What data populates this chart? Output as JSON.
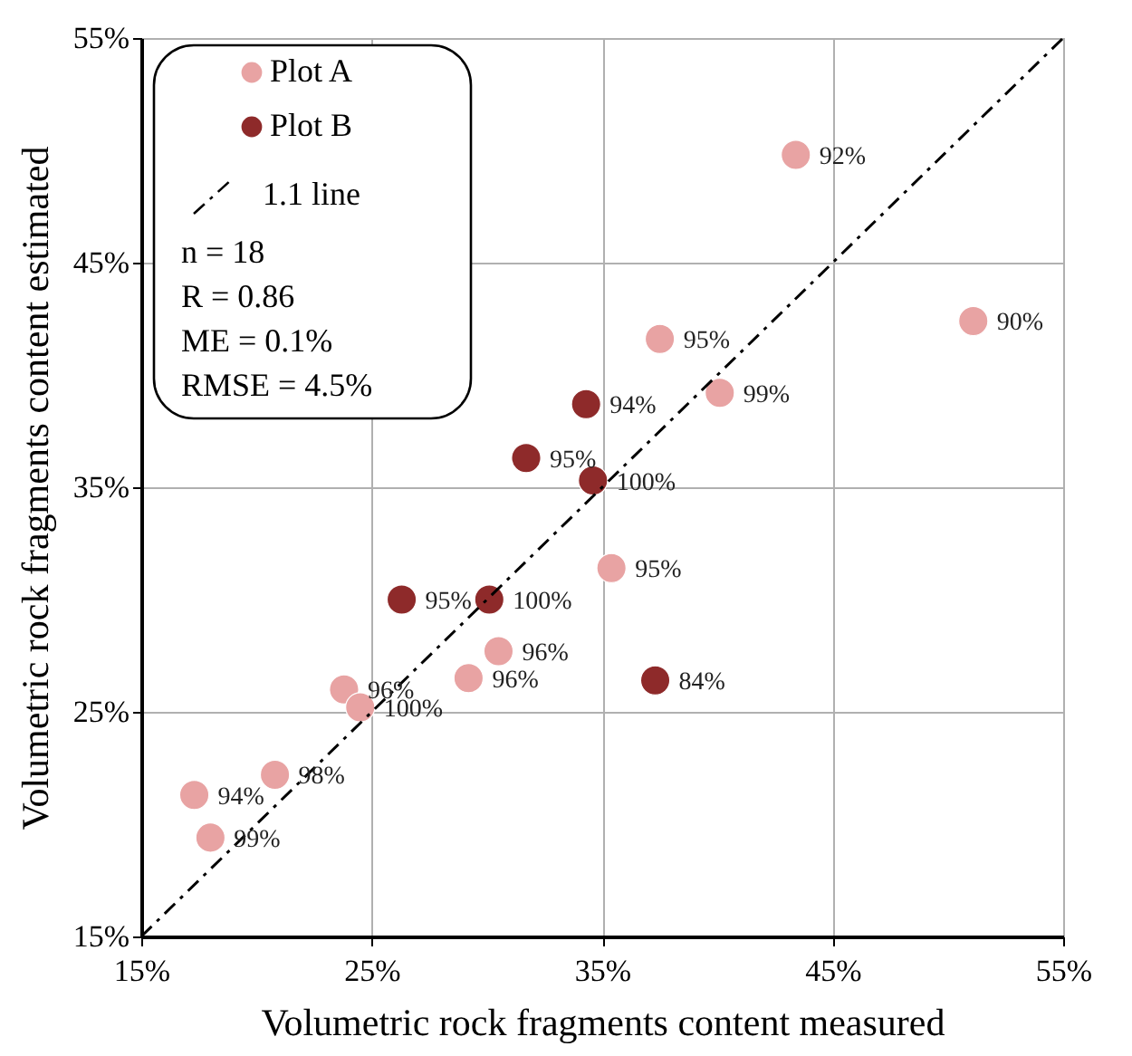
{
  "chart_data": {
    "type": "scatter",
    "xlabel": "Volumetric rock fragments content measured",
    "ylabel": "Volumetric rock  fragments content estimated",
    "xlim": [
      15,
      55
    ],
    "ylim": [
      15,
      55
    ],
    "xticks": [
      {
        "value": 15,
        "label": "15%"
      },
      {
        "value": 25,
        "label": "25%"
      },
      {
        "value": 35,
        "label": "35%"
      },
      {
        "value": 45,
        "label": "45%"
      },
      {
        "value": 55,
        "label": "55%"
      }
    ],
    "yticks": [
      {
        "value": 15,
        "label": "15%"
      },
      {
        "value": 25,
        "label": "25%"
      },
      {
        "value": 35,
        "label": "35%"
      },
      {
        "value": 45,
        "label": "45%"
      },
      {
        "value": 55,
        "label": "55%"
      }
    ],
    "grid": true,
    "legend": "top left",
    "annotations": [
      "n = 18",
      "R = 0.86",
      "ME = 0.1%",
      "RMSE = 4.5%",
      {
        "text": "92%",
        "x": 43.4,
        "y": 49.8
      },
      {
        "text": "90%",
        "x": 51.1,
        "y": 42.4
      },
      {
        "text": "95%",
        "x": 37.5,
        "y": 41.6
      },
      {
        "text": "99%",
        "x": 40.1,
        "y": 39.2
      },
      {
        "text": "95%",
        "x": 35.4,
        "y": 31.4
      },
      {
        "text": "96%",
        "x": 30.5,
        "y": 27.7
      },
      {
        "text": "96%",
        "x": 29.2,
        "y": 26.5
      },
      {
        "text": "96%",
        "x": 23.8,
        "y": 26.0
      },
      {
        "text": "100%",
        "x": 24.5,
        "y": 25.2
      },
      {
        "text": "98%",
        "x": 20.8,
        "y": 22.2
      },
      {
        "text": "94%",
        "x": 17.3,
        "y": 21.3
      },
      {
        "text": "99%",
        "x": 18.0,
        "y": 19.4
      },
      {
        "text": "94%",
        "x": 34.3,
        "y": 38.7
      },
      {
        "text": "95%",
        "x": 31.7,
        "y": 36.3
      },
      {
        "text": "100%",
        "x": 34.6,
        "y": 35.3
      },
      {
        "text": "95%",
        "x": 26.3,
        "y": 30.0
      },
      {
        "text": "100%",
        "x": 30.1,
        "y": 30.0
      },
      {
        "text": "84%",
        "x": 37.3,
        "y": 26.4
      }
    ],
    "series": [
      {
        "name": "Plot A",
        "type": "scatter",
        "color": "#e8a3a3",
        "marker": "circle",
        "x": [
          43.4,
          51.1,
          37.5,
          40.1,
          35.4,
          30.5,
          29.2,
          23.8,
          24.5,
          20.8,
          17.3,
          18.0
        ],
        "values": [
          49.8,
          42.4,
          41.6,
          39.2,
          31.4,
          27.7,
          26.5,
          26.0,
          25.2,
          22.2,
          21.3,
          19.4
        ]
      },
      {
        "name": "Plot B",
        "type": "scatter",
        "color": "#8e2a2a",
        "marker": "circle",
        "x": [
          34.3,
          31.7,
          34.6,
          26.3,
          30.1,
          37.3
        ],
        "values": [
          38.7,
          36.3,
          35.3,
          30.0,
          30.0,
          26.4
        ]
      },
      {
        "name": "1.1 line",
        "type": "line",
        "color": "#000000",
        "line_style": "dashed",
        "x": [
          15,
          55
        ],
        "values": [
          15,
          55
        ]
      }
    ]
  }
}
